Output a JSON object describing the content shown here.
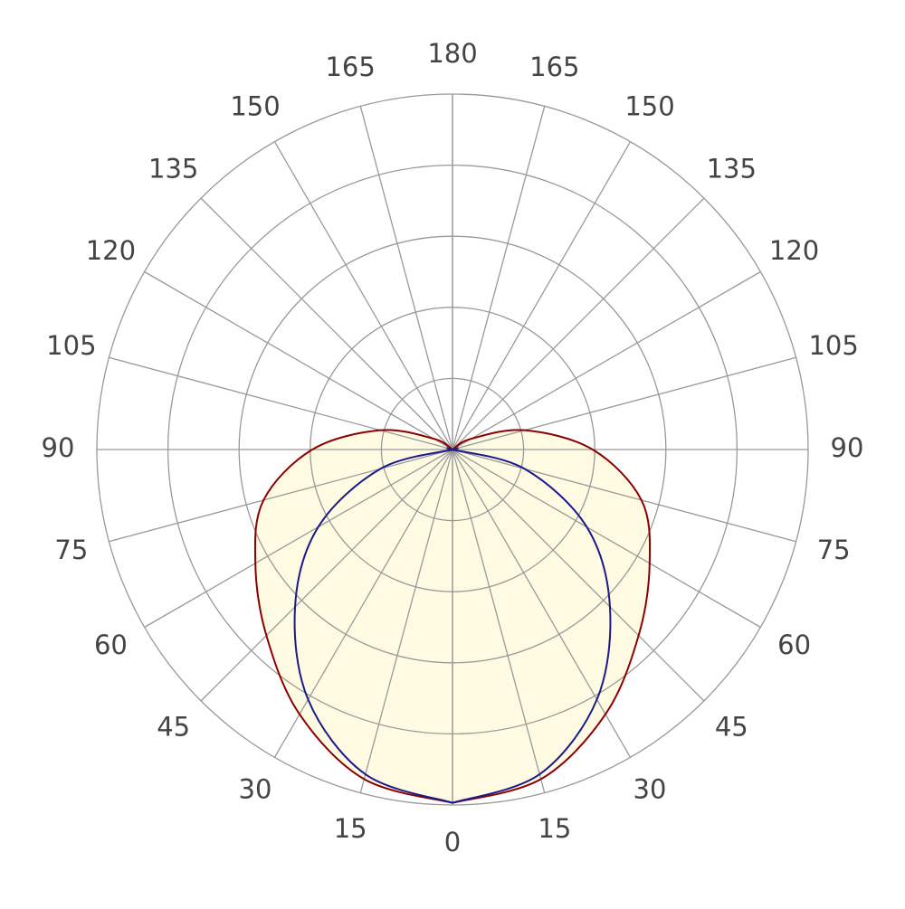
{
  "chart_data": {
    "type": "polar",
    "x": [
      0,
      15,
      30,
      45,
      60,
      75,
      90,
      105,
      120,
      135,
      150,
      165,
      180
    ],
    "series": [
      {
        "color": "#8b0000",
        "values": [
          497,
          480,
          430,
          370,
          320,
          275,
          197,
          105,
          30,
          0,
          0,
          0,
          0
        ]
      },
      {
        "color": "#1a1a8c",
        "values": [
          497,
          473,
          406,
          313,
          218,
          105,
          0,
          0,
          0,
          0,
          0,
          0,
          0
        ]
      }
    ],
    "fill": "#fffbe3",
    "rlim": [
      0,
      500
    ],
    "rticks": [
      100,
      200,
      300,
      400,
      500
    ],
    "grid": true
  }
}
